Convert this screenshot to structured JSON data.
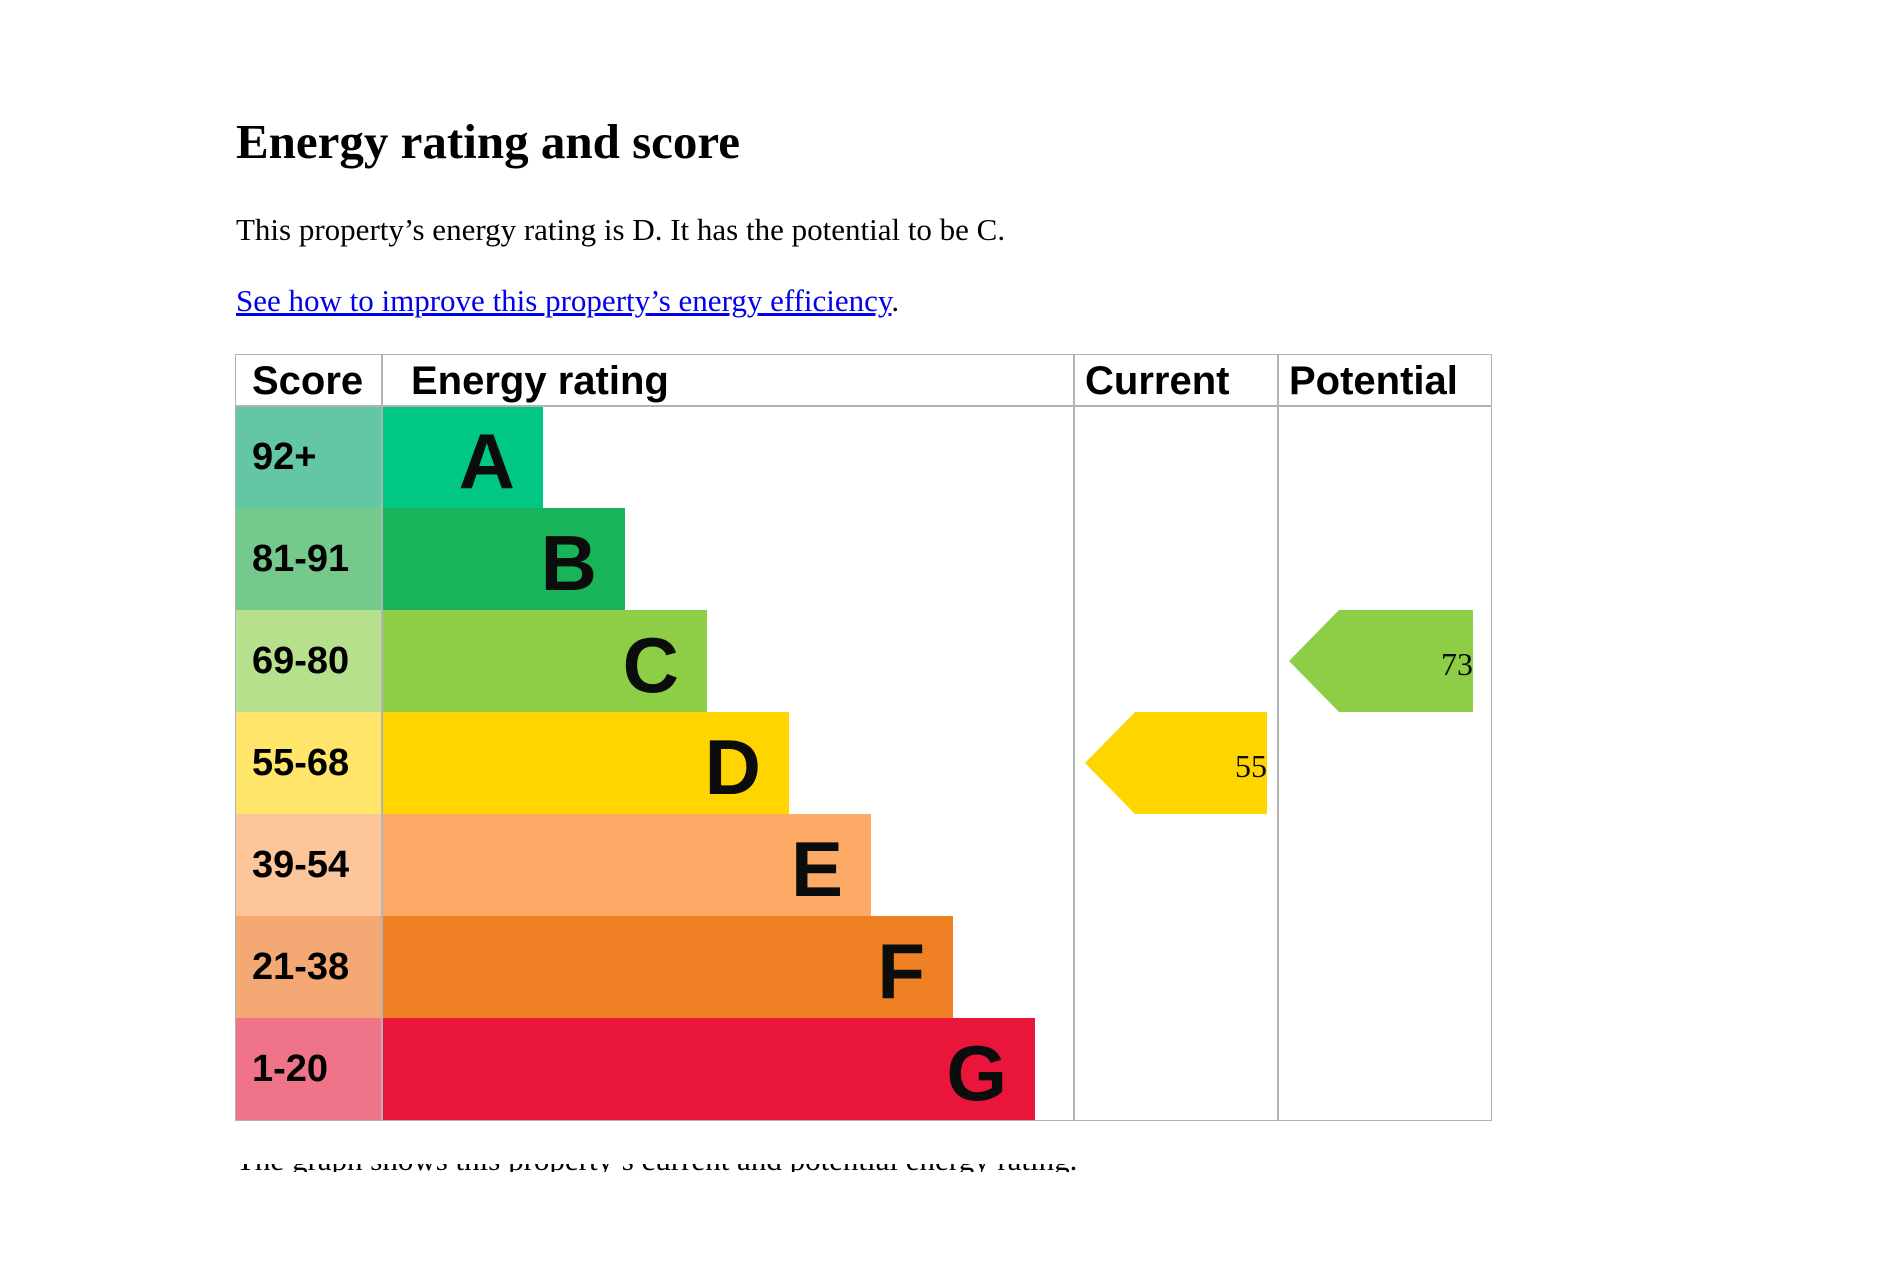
{
  "heading": "Energy rating and score",
  "summary": "This property’s energy rating is D. It has the potential to be C.",
  "improve_link": {
    "text": "See how to improve this property’s energy efficiency",
    "suffix": "."
  },
  "chart_data": {
    "type": "bar",
    "headers": {
      "score": "Score",
      "rating": "Energy rating",
      "current": "Current",
      "potential": "Potential"
    },
    "bands": [
      {
        "letter": "A",
        "range": "92+",
        "color": "#00c781",
        "score_color": "#64c7a3"
      },
      {
        "letter": "B",
        "range": "81-91",
        "color": "#19b459",
        "score_color": "#76c98c"
      },
      {
        "letter": "C",
        "range": "69-80",
        "color": "#8dce46",
        "score_color": "#b6e08c"
      },
      {
        "letter": "D",
        "range": "55-68",
        "color": "#ffd500",
        "score_color": "#ffe66a"
      },
      {
        "letter": "E",
        "range": "39-54",
        "color": "#fcaa65",
        "score_color": "#fdc59a"
      },
      {
        "letter": "F",
        "range": "21-38",
        "color": "#ef8023",
        "score_color": "#f4a974"
      },
      {
        "letter": "G",
        "range": "1-20",
        "color": "#e9153b",
        "score_color": "#f07489"
      }
    ],
    "current": {
      "score": "55",
      "band": "D",
      "color": "#ffd500"
    },
    "potential": {
      "score": "73",
      "band": "C",
      "color": "#8dce46"
    }
  },
  "footer_text": "The graph shows this property’s current and potential energy rating."
}
